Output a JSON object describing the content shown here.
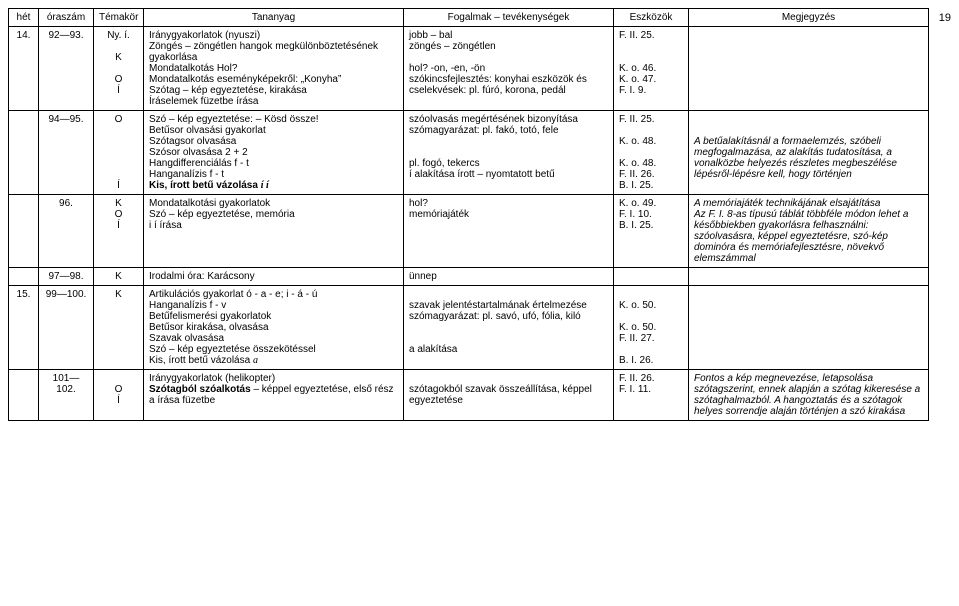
{
  "page_number": "19",
  "headers": [
    "hét",
    "óraszám",
    "Témakör",
    "Tananyag",
    "Fogalmak – tevékenységek",
    "Eszközök",
    "Megjegyzés"
  ],
  "rows": [
    {
      "het": "14.",
      "oraszam": "92—93.",
      "temakor": [
        "Ny. í.",
        "",
        "K",
        "",
        "O",
        "Í"
      ],
      "tananyag": {
        "lines": [
          {
            "t": "Iránygyakorlatok (nyuszi)"
          },
          {
            "t": "Zöngés – zöngétlen hangok megkülönböztetésének gyakorlása"
          },
          {
            "t": "Mondatalkotás Hol?"
          },
          {
            "t": "Mondatalkotás eseményképekről: „Konyha”"
          },
          {
            "t": "Szótag – kép egyeztetése, kirakása"
          },
          {
            "t": "Íráselemek füzetbe írása"
          }
        ]
      },
      "fogalmak": {
        "lines": [
          {
            "t": "jobb – bal"
          },
          {
            "t": "zöngés – zöngétlen"
          },
          {
            "t": ""
          },
          {
            "t": "hol? -on, -en, -ön"
          },
          {
            "t": "szókincsfejlesztés: konyhai eszközök és cselekvések: pl. fúró, korona, pedál"
          }
        ]
      },
      "eszkozok": {
        "lines": [
          {
            "t": "F. II. 25."
          },
          {
            "t": ""
          },
          {
            "t": ""
          },
          {
            "t": "K. o. 46."
          },
          {
            "t": "K. o. 47."
          },
          {
            "t": "F. I. 9."
          }
        ]
      },
      "megjegyzes": {
        "lines": []
      }
    },
    {
      "het": "",
      "oraszam": "94—95.",
      "temakor": [
        "O",
        "",
        "",
        "",
        "",
        "",
        "Í"
      ],
      "tananyag": {
        "lines": [
          {
            "t": "Szó – kép egyeztetése: – Kösd össze!"
          },
          {
            "t": "Betűsor olvasási gyakorlat"
          },
          {
            "t": "Szótagsor olvasása"
          },
          {
            "t": "Szósor olvasása 2 + 2"
          },
          {
            "t": "Hangdifferenciálás f - t"
          },
          {
            "t": "Hanganalízis f - t"
          },
          {
            "t": "Kis, írott betű vázolása ",
            "bold": true,
            "glyph": "í í"
          }
        ]
      },
      "fogalmak": {
        "lines": [
          {
            "t": "szóolvasás megértésének bizonyítása"
          },
          {
            "t": "szómagyarázat: pl. fakó, totó, fele"
          },
          {
            "t": ""
          },
          {
            "t": ""
          },
          {
            "t": "pl. fogó, tekercs"
          },
          {
            "t": "í alakítása írott – nyomtatott betű"
          }
        ]
      },
      "eszkozok": {
        "lines": [
          {
            "t": "F. II. 25."
          },
          {
            "t": ""
          },
          {
            "t": "K. o. 48."
          },
          {
            "t": ""
          },
          {
            "t": "K. o. 48."
          },
          {
            "t": "F. II. 26."
          },
          {
            "t": "B. I. 25."
          }
        ]
      },
      "megjegyzes": {
        "lines": [
          {
            "t": ""
          },
          {
            "t": ""
          },
          {
            "t": "A betűalakításnál a formaelemzés, szóbeli megfogalmazása, az alakítás tudatosítása, a vonalközbe helyezés részletes megbeszélése lépésről-lépésre kell, hogy történjen",
            "italic": true
          }
        ]
      }
    },
    {
      "het": "",
      "oraszam": "96.",
      "temakor": [
        "K",
        "O",
        "Í"
      ],
      "tananyag": {
        "lines": [
          {
            "t": "Mondatalkotási gyakorlatok"
          },
          {
            "t": "Szó – kép egyeztetése, memória"
          },
          {
            "t": "i í írása"
          }
        ]
      },
      "fogalmak": {
        "lines": [
          {
            "t": "hol?"
          },
          {
            "t": "memóriajáték"
          }
        ]
      },
      "eszkozok": {
        "lines": [
          {
            "t": "K. o. 49."
          },
          {
            "t": "F. I. 10."
          },
          {
            "t": "B. I. 25."
          }
        ]
      },
      "megjegyzes": {
        "lines": [
          {
            "t": "A memóriajáték technikájának elsajátítása",
            "italic": true
          },
          {
            "t": "Az F. I. 8-as típusú táblát többféle módon lehet a későbbiekben gyakorlásra felhasználni: szóolvasásra, képpel egyeztetésre, szó-kép dominóra és memóriafejlesztésre, növekvő elemszámmal",
            "italic": true
          }
        ]
      }
    },
    {
      "het": "",
      "oraszam": "97—98.",
      "temakor": [
        "K"
      ],
      "tananyag": {
        "lines": [
          {
            "t": "Irodalmi óra: Karácsony"
          }
        ]
      },
      "fogalmak": {
        "lines": [
          {
            "t": "ünnep"
          }
        ]
      },
      "eszkozok": {
        "lines": []
      },
      "megjegyzes": {
        "lines": []
      }
    },
    {
      "het": "15.",
      "oraszam": "99—100.",
      "temakor": [
        "K",
        "",
        "",
        "",
        "",
        "",
        ""
      ],
      "tananyag": {
        "lines": [
          {
            "t": "Artikulációs gyakorlat ó - a - e; i - á - ú"
          },
          {
            "t": "Hanganalízis f - v"
          },
          {
            "t": "Betűfelismerési gyakorlatok"
          },
          {
            "t": "Betűsor kirakása, olvasása"
          },
          {
            "t": "Szavak olvasása"
          },
          {
            "t": "Szó – kép egyeztetése összekötéssel"
          },
          {
            "t": "Kis, írott betű vázolása ",
            "glyph": "a"
          }
        ]
      },
      "fogalmak": {
        "lines": [
          {
            "t": ""
          },
          {
            "t": "szavak jelentéstartalmának értelmezése"
          },
          {
            "t": "szómagyarázat: pl. savó, ufó, fólia, kiló"
          },
          {
            "t": ""
          },
          {
            "t": ""
          },
          {
            "t": "a alakítása"
          }
        ]
      },
      "eszkozok": {
        "lines": [
          {
            "t": ""
          },
          {
            "t": "K. o. 50."
          },
          {
            "t": ""
          },
          {
            "t": "K. o. 50."
          },
          {
            "t": "F. II. 27."
          },
          {
            "t": ""
          },
          {
            "t": "B. I. 26."
          }
        ]
      },
      "megjegyzes": {
        "lines": []
      }
    },
    {
      "het": "",
      "oraszam": "101—102.",
      "temakor": [
        "",
        "O",
        "Í"
      ],
      "tananyag": {
        "lines": [
          {
            "t": "Iránygyakorlatok (helikopter)"
          },
          {
            "t": "Szótagból szóalkotás – képpel egyeztetése, első rész",
            "bold_prefix": "Szótagból szóalkotás"
          },
          {
            "t": "a írása füzetbe"
          }
        ]
      },
      "fogalmak": {
        "lines": [
          {
            "t": ""
          },
          {
            "t": "szótagokból szavak összeállítása, képpel egyeztetése"
          }
        ]
      },
      "eszkozok": {
        "lines": [
          {
            "t": "F. II. 26."
          },
          {
            "t": "F. I. 11."
          }
        ]
      },
      "megjegyzes": {
        "lines": [
          {
            "t": "Fontos a kép megnevezése, letapsolása szótagszerint, ennek alapján a szótag kikeresése a szótaghalmazból. A hangoztatás és a szótagok helyes sorrendje alaján történjen a szó kirakása",
            "italic": true
          }
        ]
      }
    }
  ]
}
